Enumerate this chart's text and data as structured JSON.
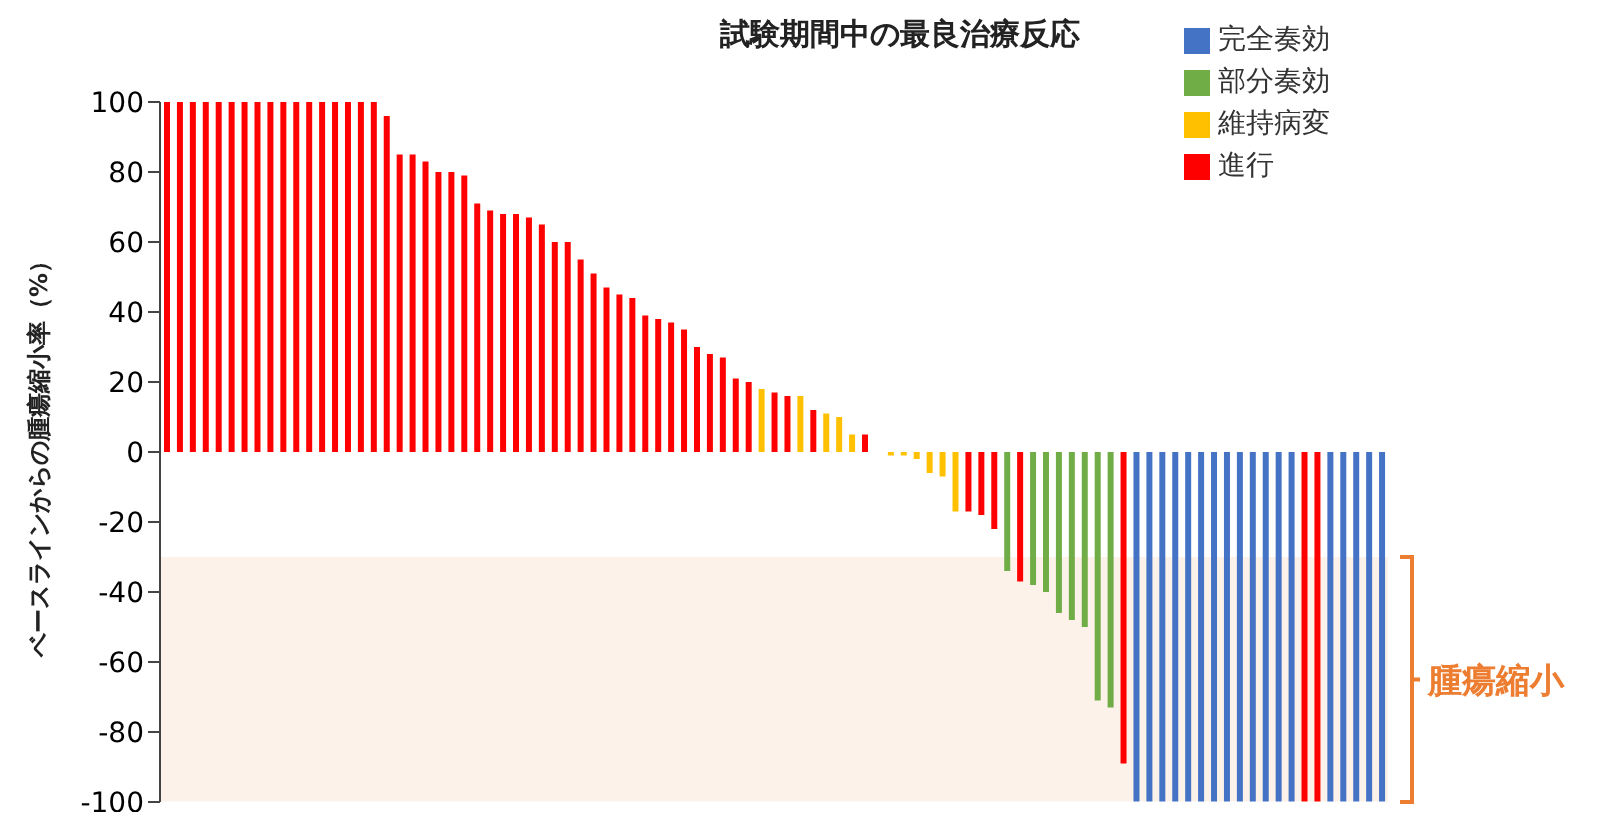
{
  "chart_data": {
    "type": "bar",
    "title": "試験期間中の最良治療反応",
    "ylabel": "ベースラインからの腫瘍縮小率（%）",
    "categories": [
      null,
      null,
      null,
      null,
      null,
      null,
      null,
      null,
      null,
      null,
      null,
      null,
      null,
      null,
      null,
      null,
      null,
      null,
      null,
      null,
      null,
      null,
      null,
      null,
      null,
      null,
      null,
      null,
      null,
      null,
      null,
      null,
      null,
      null,
      null,
      null,
      null,
      null,
      null,
      null,
      null,
      null,
      null,
      null,
      null,
      null,
      null,
      null,
      null,
      null,
      null,
      null,
      null,
      null,
      null,
      null,
      null,
      null,
      null,
      null,
      null,
      null,
      null,
      null,
      null,
      null,
      null,
      null,
      null,
      null,
      null,
      null,
      null,
      null,
      null,
      null,
      null,
      null,
      null,
      null,
      null,
      null,
      null,
      null,
      null,
      null,
      null,
      null,
      null,
      null,
      null,
      null,
      null,
      null,
      null
    ],
    "stacked": true,
    "series": [
      {
        "name": "完全奏効",
        "color": "#4472c4",
        "values": [
          null,
          null,
          null,
          null,
          null,
          null,
          null,
          null,
          null,
          null,
          null,
          null,
          null,
          null,
          null,
          null,
          null,
          null,
          null,
          null,
          null,
          null,
          null,
          null,
          null,
          null,
          null,
          null,
          null,
          null,
          null,
          null,
          null,
          null,
          null,
          null,
          null,
          null,
          null,
          null,
          null,
          null,
          null,
          null,
          null,
          null,
          null,
          null,
          null,
          null,
          null,
          null,
          null,
          null,
          null,
          null,
          null,
          null,
          null,
          null,
          null,
          null,
          null,
          null,
          null,
          null,
          null,
          null,
          null,
          null,
          null,
          null,
          null,
          null,
          null,
          -100,
          -100,
          -100,
          -100,
          -100,
          -100,
          -100,
          -100,
          -100,
          -100,
          -100,
          -100,
          -100,
          null,
          null,
          -100,
          -100,
          -100,
          -100,
          -100
        ]
      },
      {
        "name": "部分奏効",
        "color": "#70ad47",
        "values": [
          null,
          null,
          null,
          null,
          null,
          null,
          null,
          null,
          null,
          null,
          null,
          null,
          null,
          null,
          null,
          null,
          null,
          null,
          null,
          null,
          null,
          null,
          null,
          null,
          null,
          null,
          null,
          null,
          null,
          null,
          null,
          null,
          null,
          null,
          null,
          null,
          null,
          null,
          null,
          null,
          null,
          null,
          null,
          null,
          null,
          null,
          null,
          null,
          null,
          null,
          null,
          null,
          null,
          null,
          null,
          null,
          null,
          null,
          null,
          null,
          null,
          null,
          null,
          null,
          null,
          -34,
          null,
          -38,
          -40,
          -46,
          -48,
          -50,
          -71,
          -73,
          null,
          null,
          null,
          null,
          null,
          null,
          null,
          null,
          null,
          null,
          null,
          null,
          null,
          null,
          null,
          null,
          null,
          null,
          null,
          null,
          null
        ]
      },
      {
        "name": "維持病変",
        "color": "#ffc000",
        "values": [
          null,
          null,
          null,
          null,
          null,
          null,
          null,
          null,
          null,
          null,
          null,
          null,
          null,
          null,
          null,
          null,
          null,
          null,
          null,
          null,
          null,
          null,
          null,
          null,
          null,
          null,
          null,
          null,
          null,
          null,
          null,
          null,
          null,
          null,
          null,
          null,
          null,
          null,
          null,
          null,
          null,
          null,
          null,
          null,
          null,
          null,
          18,
          null,
          null,
          16,
          null,
          11,
          10,
          5,
          null,
          0,
          -1,
          -1,
          -2,
          -6,
          -7,
          -17,
          null,
          null,
          null,
          null,
          null,
          null,
          null,
          null,
          null,
          null,
          null,
          null,
          null,
          null,
          null,
          null,
          null,
          null,
          null,
          null,
          null,
          null,
          null,
          null,
          null,
          null,
          null,
          null,
          null,
          null,
          null,
          null,
          null
        ]
      },
      {
        "name": "進行",
        "color": "#ff0000",
        "values": [
          100,
          100,
          100,
          100,
          100,
          100,
          100,
          100,
          100,
          100,
          100,
          100,
          100,
          100,
          100,
          100,
          100,
          96,
          85,
          85,
          83,
          80,
          80,
          79,
          71,
          69,
          68,
          68,
          67,
          65,
          60,
          60,
          55,
          51,
          47,
          45,
          44,
          39,
          38,
          37,
          35,
          30,
          28,
          27,
          21,
          20,
          null,
          17,
          16,
          null,
          12,
          null,
          null,
          null,
          5,
          null,
          null,
          null,
          null,
          null,
          null,
          null,
          -17,
          -18,
          -22,
          null,
          -37,
          null,
          null,
          null,
          null,
          null,
          null,
          null,
          -89,
          null,
          null,
          null,
          null,
          null,
          null,
          null,
          null,
          null,
          null,
          null,
          null,
          null,
          -100,
          -100,
          null,
          null,
          null,
          null,
          null
        ]
      }
    ],
    "ylim": [
      -100,
      100
    ],
    "yticks": [
      -100,
      -80,
      -60,
      -40,
      -20,
      0,
      20,
      40,
      60,
      80,
      100
    ],
    "tick_labels": "y",
    "legend": "top right",
    "bands": [
      {
        "axis": "y",
        "from": -100,
        "to": -30,
        "label": "腫瘍縮小",
        "color": "#ed7d31"
      }
    ]
  }
}
